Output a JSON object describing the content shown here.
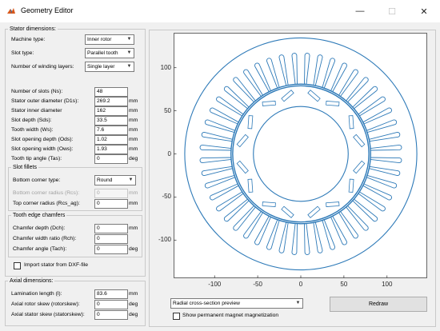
{
  "window": {
    "title": "Geometry Editor",
    "controls": {
      "minimize": "—",
      "maximize": "☐",
      "close": "✕"
    }
  },
  "stator": {
    "legend": "Stator dimensions:",
    "machine_type": {
      "label": "Machine type:",
      "value": "Inner rotor"
    },
    "slot_type": {
      "label": "Slot type:",
      "value": "Parallel tooth"
    },
    "winding_layers": {
      "label": "Number of winding layers:",
      "value": "Single layer"
    },
    "params": [
      {
        "label": "Number of slots (Ns):",
        "value": "48",
        "unit": ""
      },
      {
        "label": "Stator outer diameter (D1s):",
        "value": "269.2",
        "unit": "mm"
      },
      {
        "label": "Stator inner diameter",
        "value": "162",
        "unit": "mm"
      },
      {
        "label": "Slot depth (Sds):",
        "value": "33.5",
        "unit": "mm"
      },
      {
        "label": "Tooth width (Ws):",
        "value": "7.6",
        "unit": "mm"
      },
      {
        "label": "Slot opening depth (Ods):",
        "value": "1.02",
        "unit": "mm"
      },
      {
        "label": "Slot opening width (Ows):",
        "value": "1.93",
        "unit": "mm"
      },
      {
        "label": "Tooth tip angle (Tas):",
        "value": "0",
        "unit": "deg"
      }
    ],
    "slot_fillets": {
      "legend": "Slot fillets",
      "bottom_type": {
        "label": "Bottom corner type:",
        "value": "Round"
      },
      "bottom_radius": {
        "label": "Bottom corner radius (Rcs):",
        "value": "0",
        "unit": "mm"
      },
      "top_radius": {
        "label": "Top corner radius (Rcs_ag):",
        "value": "0",
        "unit": "mm"
      }
    },
    "tooth_chamfers": {
      "legend": "Tooth edge chamfers",
      "depth": {
        "label": "Chamfer depth (Dch):",
        "value": "0",
        "unit": "mm"
      },
      "width_ratio": {
        "label": "Chamfer width ratio (Rch):",
        "value": "0",
        "unit": ""
      },
      "angle": {
        "label": "Chamfer angle (Tach):",
        "value": "0",
        "unit": "deg"
      }
    },
    "import_dxf": {
      "label": "Import stator from DXF-file",
      "checked": false
    }
  },
  "axial": {
    "legend": "Axial dimensions:",
    "length": {
      "label": "Lamination length (l):",
      "value": "83.6",
      "unit": "mm"
    },
    "rotor_skew": {
      "label": "Axial rotor skew (rotorskew):",
      "value": "0",
      "unit": "deg"
    },
    "stator_skew": {
      "label": "Axial stator skew (statorskew):",
      "value": "0",
      "unit": "deg"
    }
  },
  "plot": {
    "x_ticks": [
      "-100",
      "-50",
      "0",
      "50",
      "100"
    ],
    "y_ticks": [
      "100",
      "50",
      "0",
      "-50",
      "-100"
    ],
    "xlim": [
      -135,
      135
    ],
    "ylim": [
      -135,
      135
    ],
    "line_color": "#2e7ab8",
    "stator_outer_radius": 134.6,
    "stator_inner_radius": 81,
    "slot_count": 48,
    "slot_depth": 33.5,
    "tooth_width": 7.6,
    "rotor_outer_radius": 79,
    "rotor_inner_radius": 55,
    "magnet_count": 8
  },
  "view_select": {
    "value": "Radial cross-section preview"
  },
  "redraw_button": {
    "label": "Redraw"
  },
  "show_magnetization": {
    "label": "Show permanent magnet magnetization",
    "checked": false
  }
}
